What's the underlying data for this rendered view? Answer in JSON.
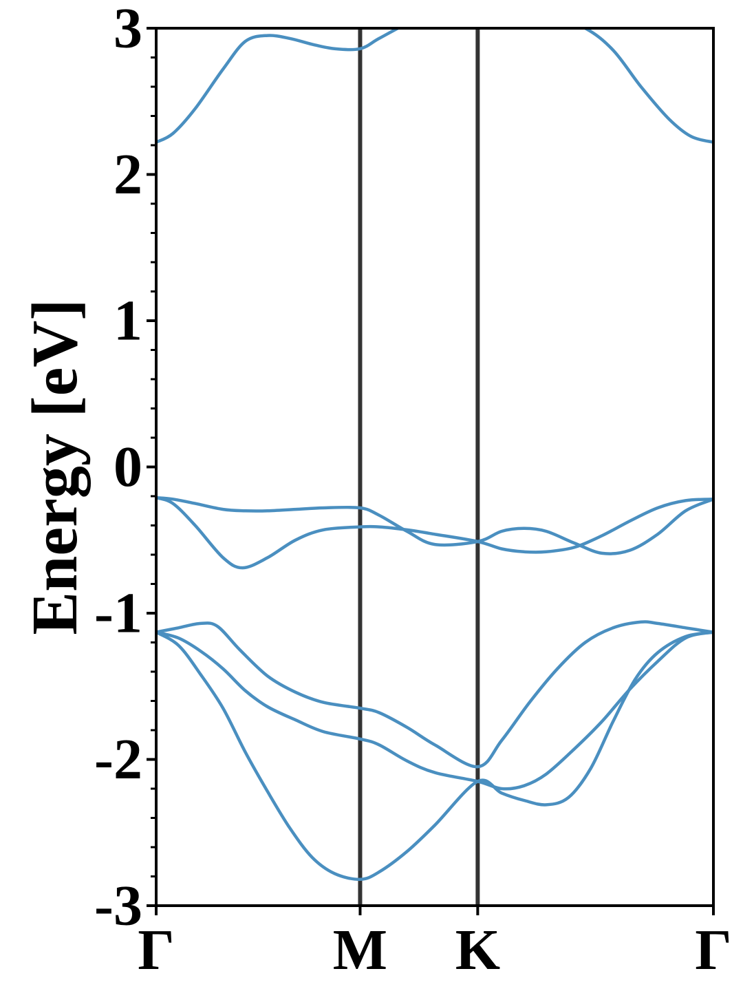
{
  "chart_data": {
    "type": "line",
    "title": "",
    "xlabel": "",
    "ylabel": "Energy [eV]",
    "ylim": [
      -3,
      3
    ],
    "y_ticks": [
      "-3",
      "-2",
      "-1",
      "0",
      "1",
      "2",
      "3"
    ],
    "x_ticks": [
      "Γ",
      "M",
      "K",
      "Γ"
    ],
    "x_tick_positions": [
      0.0,
      0.366,
      0.577,
      1.0
    ],
    "high_symmetry_lines": [
      0.366,
      0.577
    ],
    "grid": false,
    "legend": "none",
    "series_color": "#4a8fc0",
    "vline_color": "#333333",
    "series": [
      {
        "x": [
          0.0,
          0.03,
          0.07,
          0.12,
          0.16,
          0.2,
          0.24,
          0.28,
          0.32,
          0.366,
          0.4,
          0.45,
          0.5,
          0.577,
          0.62,
          0.7,
          0.77,
          0.82,
          0.87,
          0.92,
          0.96,
          1.0
        ],
        "values": [
          2.22,
          2.28,
          2.45,
          2.72,
          2.91,
          2.95,
          2.93,
          2.89,
          2.86,
          2.86,
          2.93,
          3.03,
          3.1,
          3.15,
          3.15,
          3.1,
          3.0,
          2.85,
          2.6,
          2.38,
          2.26,
          2.22
        ]
      },
      {
        "x": [
          0.0,
          0.03,
          0.07,
          0.12,
          0.16,
          0.2,
          0.25,
          0.3,
          0.366,
          0.4,
          0.45,
          0.5,
          0.577,
          0.62,
          0.66,
          0.7,
          0.75,
          0.8,
          0.85,
          0.9,
          0.95,
          1.0
        ],
        "values": [
          -0.21,
          -0.22,
          -0.25,
          -0.29,
          -0.3,
          -0.3,
          -0.29,
          -0.28,
          -0.28,
          -0.33,
          -0.44,
          -0.53,
          -0.51,
          -0.44,
          -0.42,
          -0.44,
          -0.52,
          -0.59,
          -0.57,
          -0.46,
          -0.3,
          -0.22
        ]
      },
      {
        "x": [
          0.0,
          0.03,
          0.07,
          0.12,
          0.155,
          0.2,
          0.25,
          0.3,
          0.366,
          0.4,
          0.45,
          0.5,
          0.577,
          0.62,
          0.66,
          0.7,
          0.75,
          0.8,
          0.85,
          0.9,
          0.95,
          1.0
        ],
        "values": [
          -0.21,
          -0.25,
          -0.4,
          -0.62,
          -0.69,
          -0.62,
          -0.5,
          -0.43,
          -0.41,
          -0.41,
          -0.43,
          -0.46,
          -0.51,
          -0.56,
          -0.58,
          -0.58,
          -0.55,
          -0.47,
          -0.37,
          -0.28,
          -0.23,
          -0.22
        ]
      },
      {
        "x": [
          0.0,
          0.04,
          0.08,
          0.11,
          0.15,
          0.2,
          0.25,
          0.3,
          0.366,
          0.4,
          0.45,
          0.5,
          0.577,
          0.62,
          0.67,
          0.72,
          0.77,
          0.82,
          0.87,
          0.9,
          0.95,
          1.0
        ],
        "values": [
          -1.13,
          -1.1,
          -1.07,
          -1.09,
          -1.25,
          -1.43,
          -1.54,
          -1.61,
          -1.65,
          -1.68,
          -1.78,
          -1.9,
          -2.05,
          -1.87,
          -1.61,
          -1.38,
          -1.2,
          -1.1,
          -1.06,
          -1.07,
          -1.1,
          -1.13
        ]
      },
      {
        "x": [
          0.0,
          0.04,
          0.08,
          0.12,
          0.16,
          0.2,
          0.25,
          0.3,
          0.366,
          0.4,
          0.45,
          0.5,
          0.577,
          0.62,
          0.66,
          0.7,
          0.75,
          0.8,
          0.85,
          0.9,
          0.95,
          1.0
        ],
        "values": [
          -1.13,
          -1.17,
          -1.26,
          -1.38,
          -1.53,
          -1.64,
          -1.73,
          -1.81,
          -1.86,
          -1.9,
          -2.01,
          -2.09,
          -2.15,
          -2.2,
          -2.18,
          -2.1,
          -1.93,
          -1.74,
          -1.52,
          -1.33,
          -1.17,
          -1.13
        ]
      },
      {
        "x": [
          0.0,
          0.04,
          0.08,
          0.12,
          0.16,
          0.2,
          0.24,
          0.28,
          0.32,
          0.366,
          0.4,
          0.45,
          0.5,
          0.577,
          0.62,
          0.66,
          0.7,
          0.74,
          0.78,
          0.82,
          0.86,
          0.9,
          0.95,
          1.0
        ],
        "values": [
          -1.13,
          -1.22,
          -1.42,
          -1.65,
          -1.95,
          -2.22,
          -2.47,
          -2.67,
          -2.78,
          -2.82,
          -2.77,
          -2.63,
          -2.45,
          -2.15,
          -2.23,
          -2.28,
          -2.31,
          -2.26,
          -2.06,
          -1.74,
          -1.45,
          -1.27,
          -1.16,
          -1.13
        ]
      }
    ]
  }
}
